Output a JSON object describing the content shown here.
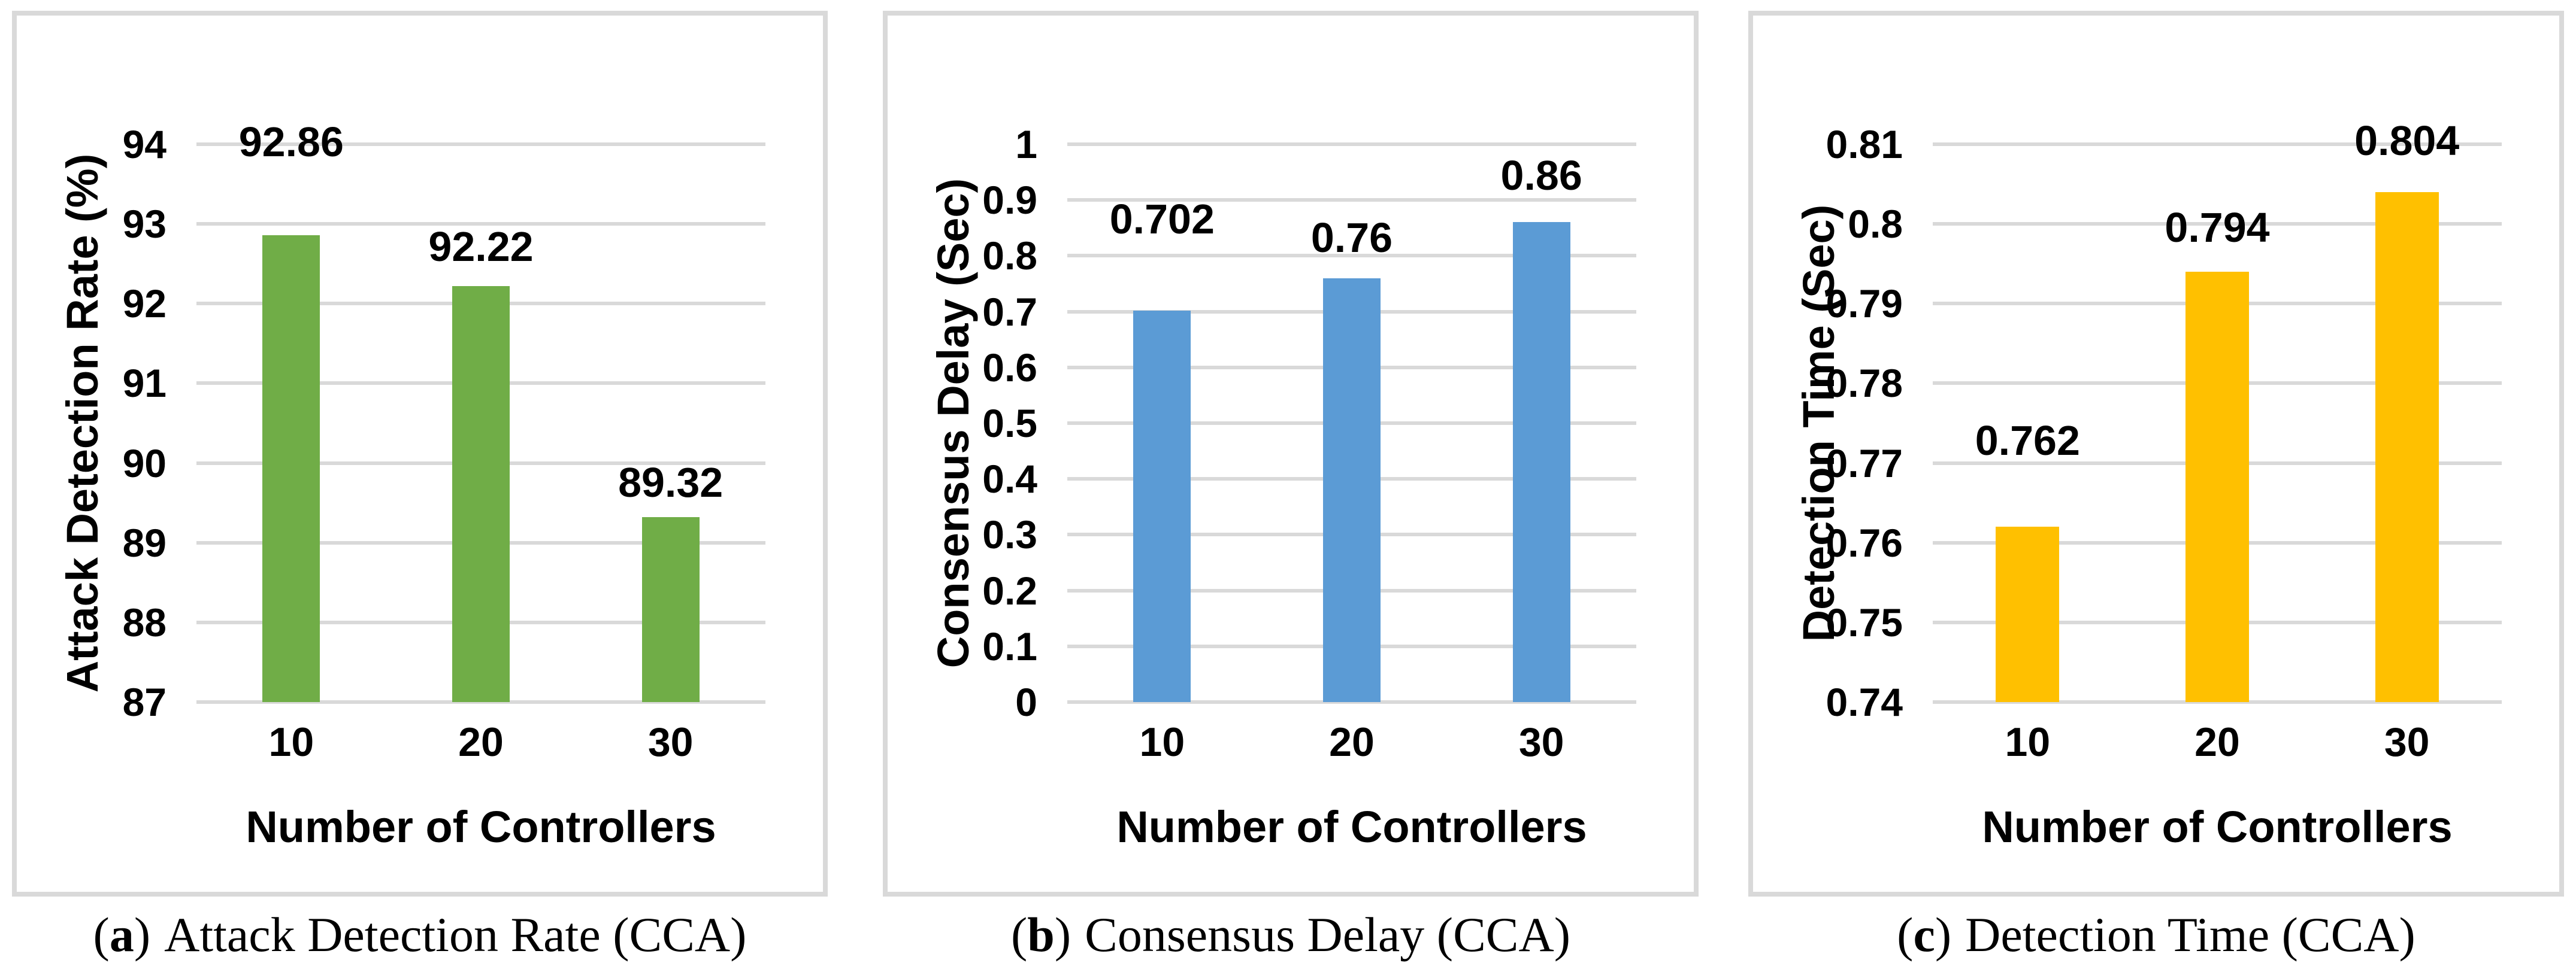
{
  "figure": {
    "background": "#FFFFFF",
    "panel_border_color": "#D9D9D9",
    "gridline_color": "#D9D9D9",
    "text_color": "#000000"
  },
  "chart_data": [
    {
      "type": "bar",
      "caption": {
        "paren_open": "(",
        "letter": "a",
        "paren_close": ")",
        "title": "Attack Detection Rate (CCA)"
      },
      "xlabel": "Number of Controllers",
      "ylabel": "Attack Detection Rate (%)",
      "categories": [
        "10",
        "20",
        "30"
      ],
      "values": [
        92.86,
        92.22,
        89.32
      ],
      "data_labels": [
        "92.86",
        "92.22",
        "89.32"
      ],
      "ylim": [
        87,
        94
      ],
      "ytick_step": 1,
      "yticks": [
        "94",
        "93",
        "92",
        "91",
        "90",
        "89",
        "88",
        "87"
      ],
      "bar_color": "#70AD47",
      "grid": true,
      "legend": false
    },
    {
      "type": "bar",
      "caption": {
        "paren_open": "(",
        "letter": "b",
        "paren_close": ")",
        "title": "Consensus Delay (CCA)"
      },
      "xlabel": "Number of Controllers",
      "ylabel": "Consensus Delay (Sec)",
      "categories": [
        "10",
        "20",
        "30"
      ],
      "values": [
        0.702,
        0.76,
        0.86
      ],
      "data_labels": [
        "0.702",
        "0.76",
        "0.86"
      ],
      "ylim": [
        0,
        1
      ],
      "ytick_step": 0.1,
      "yticks": [
        "1",
        "0.9",
        "0.8",
        "0.7",
        "0.6",
        "0.5",
        "0.4",
        "0.3",
        "0.2",
        "0.1",
        "0"
      ],
      "bar_color": "#5B9BD5",
      "grid": true,
      "legend": false
    },
    {
      "type": "bar",
      "caption": {
        "paren_open": "(",
        "letter": "c",
        "paren_close": ")",
        "title": "Detection Time (CCA)"
      },
      "xlabel": "Number of Controllers",
      "ylabel": "Detection Time (Sec)",
      "categories": [
        "10",
        "20",
        "30"
      ],
      "values": [
        0.762,
        0.794,
        0.804
      ],
      "data_labels": [
        "0.762",
        "0.794",
        "0.804"
      ],
      "ylim": [
        0.74,
        0.81
      ],
      "ytick_step": 0.01,
      "yticks": [
        "0.81",
        "0.8",
        "0.79",
        "0.78",
        "0.77",
        "0.76",
        "0.75",
        "0.74"
      ],
      "bar_color": "#FFC000",
      "grid": true,
      "legend": false
    }
  ]
}
